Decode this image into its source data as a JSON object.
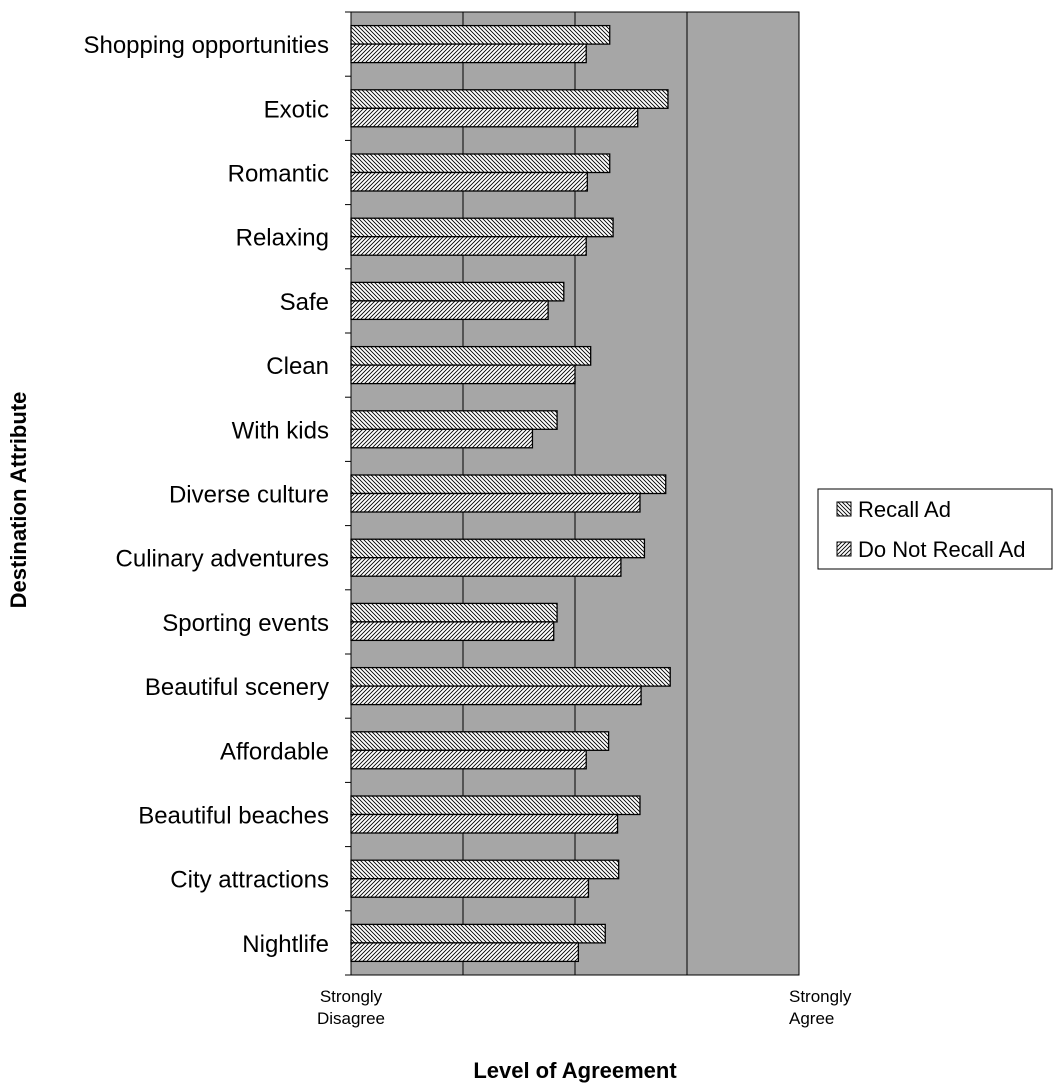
{
  "chart_data": {
    "type": "bar",
    "orientation": "horizontal",
    "categories": [
      "Shopping opportunities",
      "Exotic",
      "Romantic ",
      "Relaxing",
      "Safe",
      "Clean",
      "With kids",
      "Diverse culture",
      "Culinary adventures",
      "Sporting events",
      "Beautiful scenery",
      "Affordable",
      "Beautiful beaches",
      "City attractions",
      "Nightlife"
    ],
    "series": [
      {
        "name": "Recall Ad",
        "pattern": "hatch-down",
        "values": [
          3.31,
          3.83,
          3.31,
          3.34,
          2.9,
          3.14,
          2.84,
          3.81,
          3.62,
          2.84,
          3.85,
          3.3,
          3.58,
          3.39,
          3.27
        ]
      },
      {
        "name": "Do Not Recall Ad",
        "pattern": "hatch-up",
        "values": [
          3.1,
          3.56,
          3.11,
          3.1,
          2.76,
          3.0,
          2.62,
          3.58,
          3.41,
          2.81,
          3.59,
          3.1,
          3.38,
          3.12,
          3.03
        ]
      }
    ],
    "xlim": [
      1,
      5
    ],
    "x_tick_labels": [
      {
        "text": "Strongly\nDisagree",
        "value": 1
      },
      {
        "text": "Strongly\nAgree",
        "value": 5
      }
    ],
    "xlabel": "Level of Agreement",
    "ylabel": "Destination Attribute",
    "plot_background": "#a6a6a6",
    "bar_fill": "#ffffff",
    "bar_stroke": "#000000",
    "gridlines": "vertical",
    "legend": "right"
  }
}
